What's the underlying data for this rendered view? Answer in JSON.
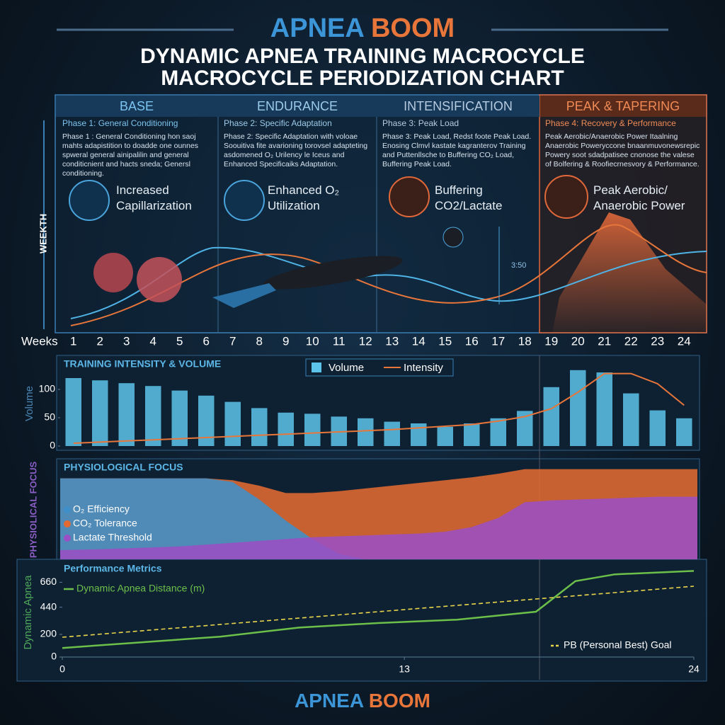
{
  "header": {
    "brand_left": "APNEA",
    "brand_right": "BOOM",
    "title_line1": "DYNAMIC APNEA TRAINING MACROCYCLE",
    "title_line2": "MACROCYCLE PERIODIZATION CHART"
  },
  "timeline_label": "WEEKTH",
  "art_label": "3:50",
  "phases": [
    {
      "name": "BASE",
      "heading": "Phase 1: General Conditioning",
      "description": "Phase 1 : General Conditioning hon saoj mahts adapistition to doadde one ounnes spweral general ainipalilin and general conditicnient and hacts sneda; Genersl conditioning.",
      "feature": "Increased Capillarization"
    },
    {
      "name": "ENDURANCE",
      "heading": "Phase 2: Specific Adaptation",
      "description": "Phase 2: Specific Adaptation with voloae Soouitiva fite avarioning torovsel adapteting asdomened O₂ Urilency le Iceus and Enhanced Specificaiks Adaptation.",
      "feature": "Enhanced O₂ Utilization"
    },
    {
      "name": "INTENSIFICATION",
      "heading": "Phase 3: Peak Load",
      "description": "Phase 3: Peak Load, Redst foote Peak Load. Enosing Clmvl kastate kagranterov Training and Puttenllsche to Buffering CO₂ Load, Buffering Peak Load.",
      "feature": "Buffering CO2/Lactate"
    },
    {
      "name": "PEAK & TAPERING",
      "heading": "Phase 4: Recovery & Performance",
      "description": "Peak Aerobic/Anaerobic Power Itaalning Anaerobic Poweryccone bnaanmuvonewsrepic Powery soot sdadpatisee cnonose the valese of Bolfering & Roofiecrnesvory & Performance.",
      "feature": "Peak Aerobic/ Anaerobic Power"
    }
  ],
  "chart_data": [
    {
      "type": "bar",
      "title": "TRAINING INTENSITY & VOLUME",
      "xlabel": "Weeks",
      "ylabel": "Volume",
      "categories": [
        "1",
        "2",
        "3",
        "4",
        "5",
        "6",
        "7",
        "8",
        "9",
        "10",
        "11",
        "12",
        "13",
        "14",
        "15",
        "16",
        "17",
        "18",
        "19",
        "20",
        "21",
        "22",
        "23",
        "24"
      ],
      "ylim": [
        0,
        135
      ],
      "yticks": [
        0,
        50,
        100
      ],
      "legend": "top",
      "series": [
        {
          "name": "Volume",
          "type": "bar",
          "color": "#5cc3ea",
          "values": [
            120,
            116,
            111,
            106,
            98,
            89,
            78,
            67,
            59,
            57,
            52,
            49,
            43,
            40,
            34,
            40,
            49,
            62,
            104,
            134,
            130,
            93,
            63,
            49
          ]
        },
        {
          "name": "Intensity",
          "type": "line",
          "color": "#e8763a",
          "values": [
            5,
            7,
            9,
            11,
            13,
            15,
            17,
            19,
            21,
            23,
            25,
            27,
            29,
            32,
            35,
            38,
            44,
            52,
            66,
            95,
            128,
            128,
            110,
            72
          ]
        }
      ]
    },
    {
      "type": "area",
      "title": "PHYSIOLOGICAL FOCUS",
      "ylabel": "PHYSIOLICAL FOCUS",
      "ylim": [
        0,
        100
      ],
      "legend": "left",
      "series": [
        {
          "name": "CO₂ Tolerance",
          "color": "#e36a32",
          "values": [
            88,
            88,
            88,
            88,
            88,
            88,
            86,
            80,
            72,
            72,
            74,
            77,
            80,
            83,
            86,
            89,
            93,
            98,
            98,
            98,
            98,
            98,
            98,
            98
          ]
        },
        {
          "name": "O₂ Efficiency",
          "color": "#3f8fc9",
          "values": [
            88,
            88,
            88,
            88,
            88,
            88,
            84,
            65,
            42,
            22,
            6,
            0,
            0,
            0,
            0,
            0,
            0,
            0,
            0,
            0,
            0,
            0,
            0,
            0
          ]
        },
        {
          "name": "Lactate Threshold",
          "color": "#9b4fc4",
          "values": [
            10,
            11,
            12,
            13,
            14,
            16,
            18,
            20,
            22,
            24,
            25,
            26,
            27,
            28,
            30,
            35,
            45,
            62,
            64,
            65,
            66,
            67,
            68,
            68
          ]
        }
      ]
    },
    {
      "type": "line",
      "title": "Performance Metrics",
      "ylabel": "Dynamic Apnea",
      "xlim": [
        0,
        24
      ],
      "xticks": [
        0,
        13,
        24
      ],
      "ylim": [
        0,
        800
      ],
      "yticks": [
        0,
        200,
        440,
        660
      ],
      "series": [
        {
          "name": "Dynamic Apnea Distance (m)",
          "color": "#6cc04a",
          "style": "solid",
          "legend": "top-left",
          "x": [
            0,
            3,
            6,
            9,
            12,
            15,
            18,
            19.5,
            21,
            24
          ],
          "values": [
            80,
            130,
            180,
            260,
            300,
            330,
            400,
            670,
            730,
            760
          ]
        },
        {
          "name": "PB (Personal Best) Goal",
          "color": "#e8d44a",
          "style": "dashed",
          "legend": "bottom-right",
          "x": [
            0,
            24
          ],
          "values": [
            175,
            625
          ]
        }
      ]
    }
  ]
}
